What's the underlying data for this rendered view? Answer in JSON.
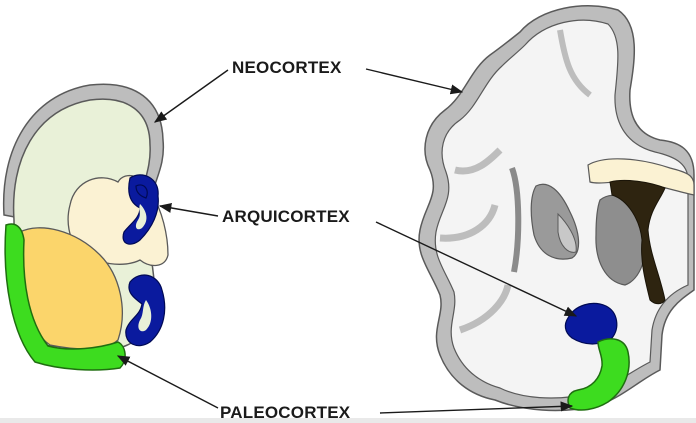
{
  "labels": {
    "neocortex": "NEOCORTEX",
    "arquicortex": "ARQUICORTEX",
    "paleocortex": "PALEOCORTEX"
  },
  "colors": {
    "neocortex_gray": "#bdbdbd",
    "hemisphere_fill": "#e9f1d8",
    "arquicortex_blue": "#0a1a9e",
    "paleocortex_green": "#3ddc1f",
    "striatum_yellow": "#fbd56b",
    "ventricle_cream": "#fbf2d3",
    "dark_core": "#2e2410"
  }
}
